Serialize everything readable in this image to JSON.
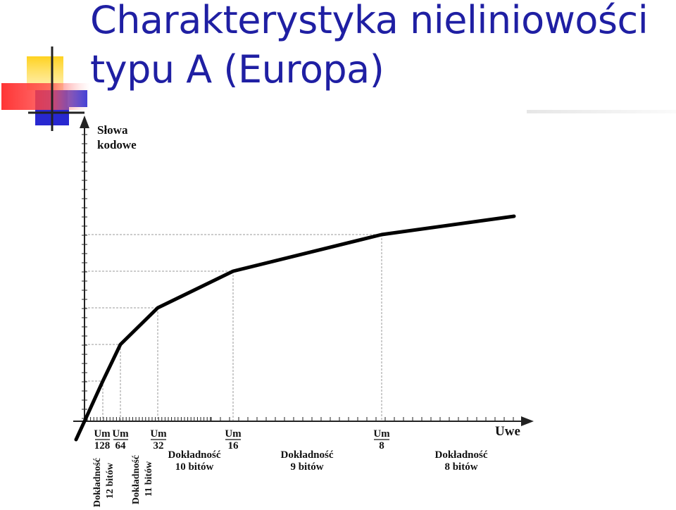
{
  "slide": {
    "title_line1": "Charakterystyka nieliniowości",
    "title_line2": "typu A (Europa)"
  },
  "colors": {
    "title": "#1f1fa3",
    "logo_yellow": "#ffd21f",
    "logo_red": "#ff2a2a",
    "logo_blue": "#2828d0",
    "curve": "#000000"
  },
  "diagram": {
    "y_axis_label": [
      "Słowa",
      "kodowe"
    ],
    "x_axis_label": "Uwe",
    "breakpoints": [
      {
        "num": "Um",
        "den": "128"
      },
      {
        "num": "Um",
        "den": "64"
      },
      {
        "num": "Um",
        "den": "32"
      },
      {
        "num": "Um",
        "den": "16"
      },
      {
        "num": "Um",
        "den": "8"
      }
    ],
    "segments_vertical": [
      [
        "Dokładność",
        "12 bitów"
      ],
      [
        "Dokładność",
        "11 bitów"
      ]
    ],
    "segments_horizontal": [
      [
        "Dokładność",
        "10 bitów"
      ],
      [
        "Dokładność",
        "9 bitów"
      ],
      [
        "Dokładność",
        "8 bitów"
      ]
    ]
  }
}
